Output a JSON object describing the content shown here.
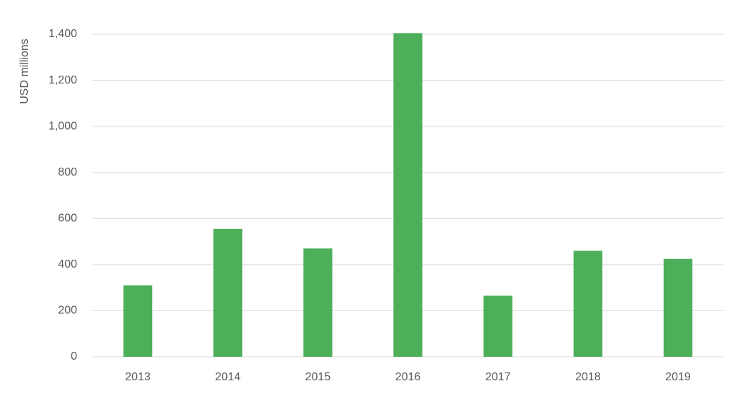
{
  "chart_data": {
    "type": "bar",
    "y_label": "USD millions",
    "categories": [
      "2013",
      "2014",
      "2015",
      "2016",
      "2017",
      "2018",
      "2019"
    ],
    "values": [
      310,
      555,
      470,
      1405,
      265,
      460,
      425
    ],
    "color": "#4daf5a",
    "ylim": [
      0,
      1400
    ],
    "yticks": [
      0,
      200,
      400,
      600,
      800,
      {
        "value": 1000,
        "label": "1,000"
      },
      {
        "value": 1200,
        "label": "1,200"
      },
      {
        "value": 1400,
        "label": "1,400"
      }
    ],
    "grid": true
  }
}
